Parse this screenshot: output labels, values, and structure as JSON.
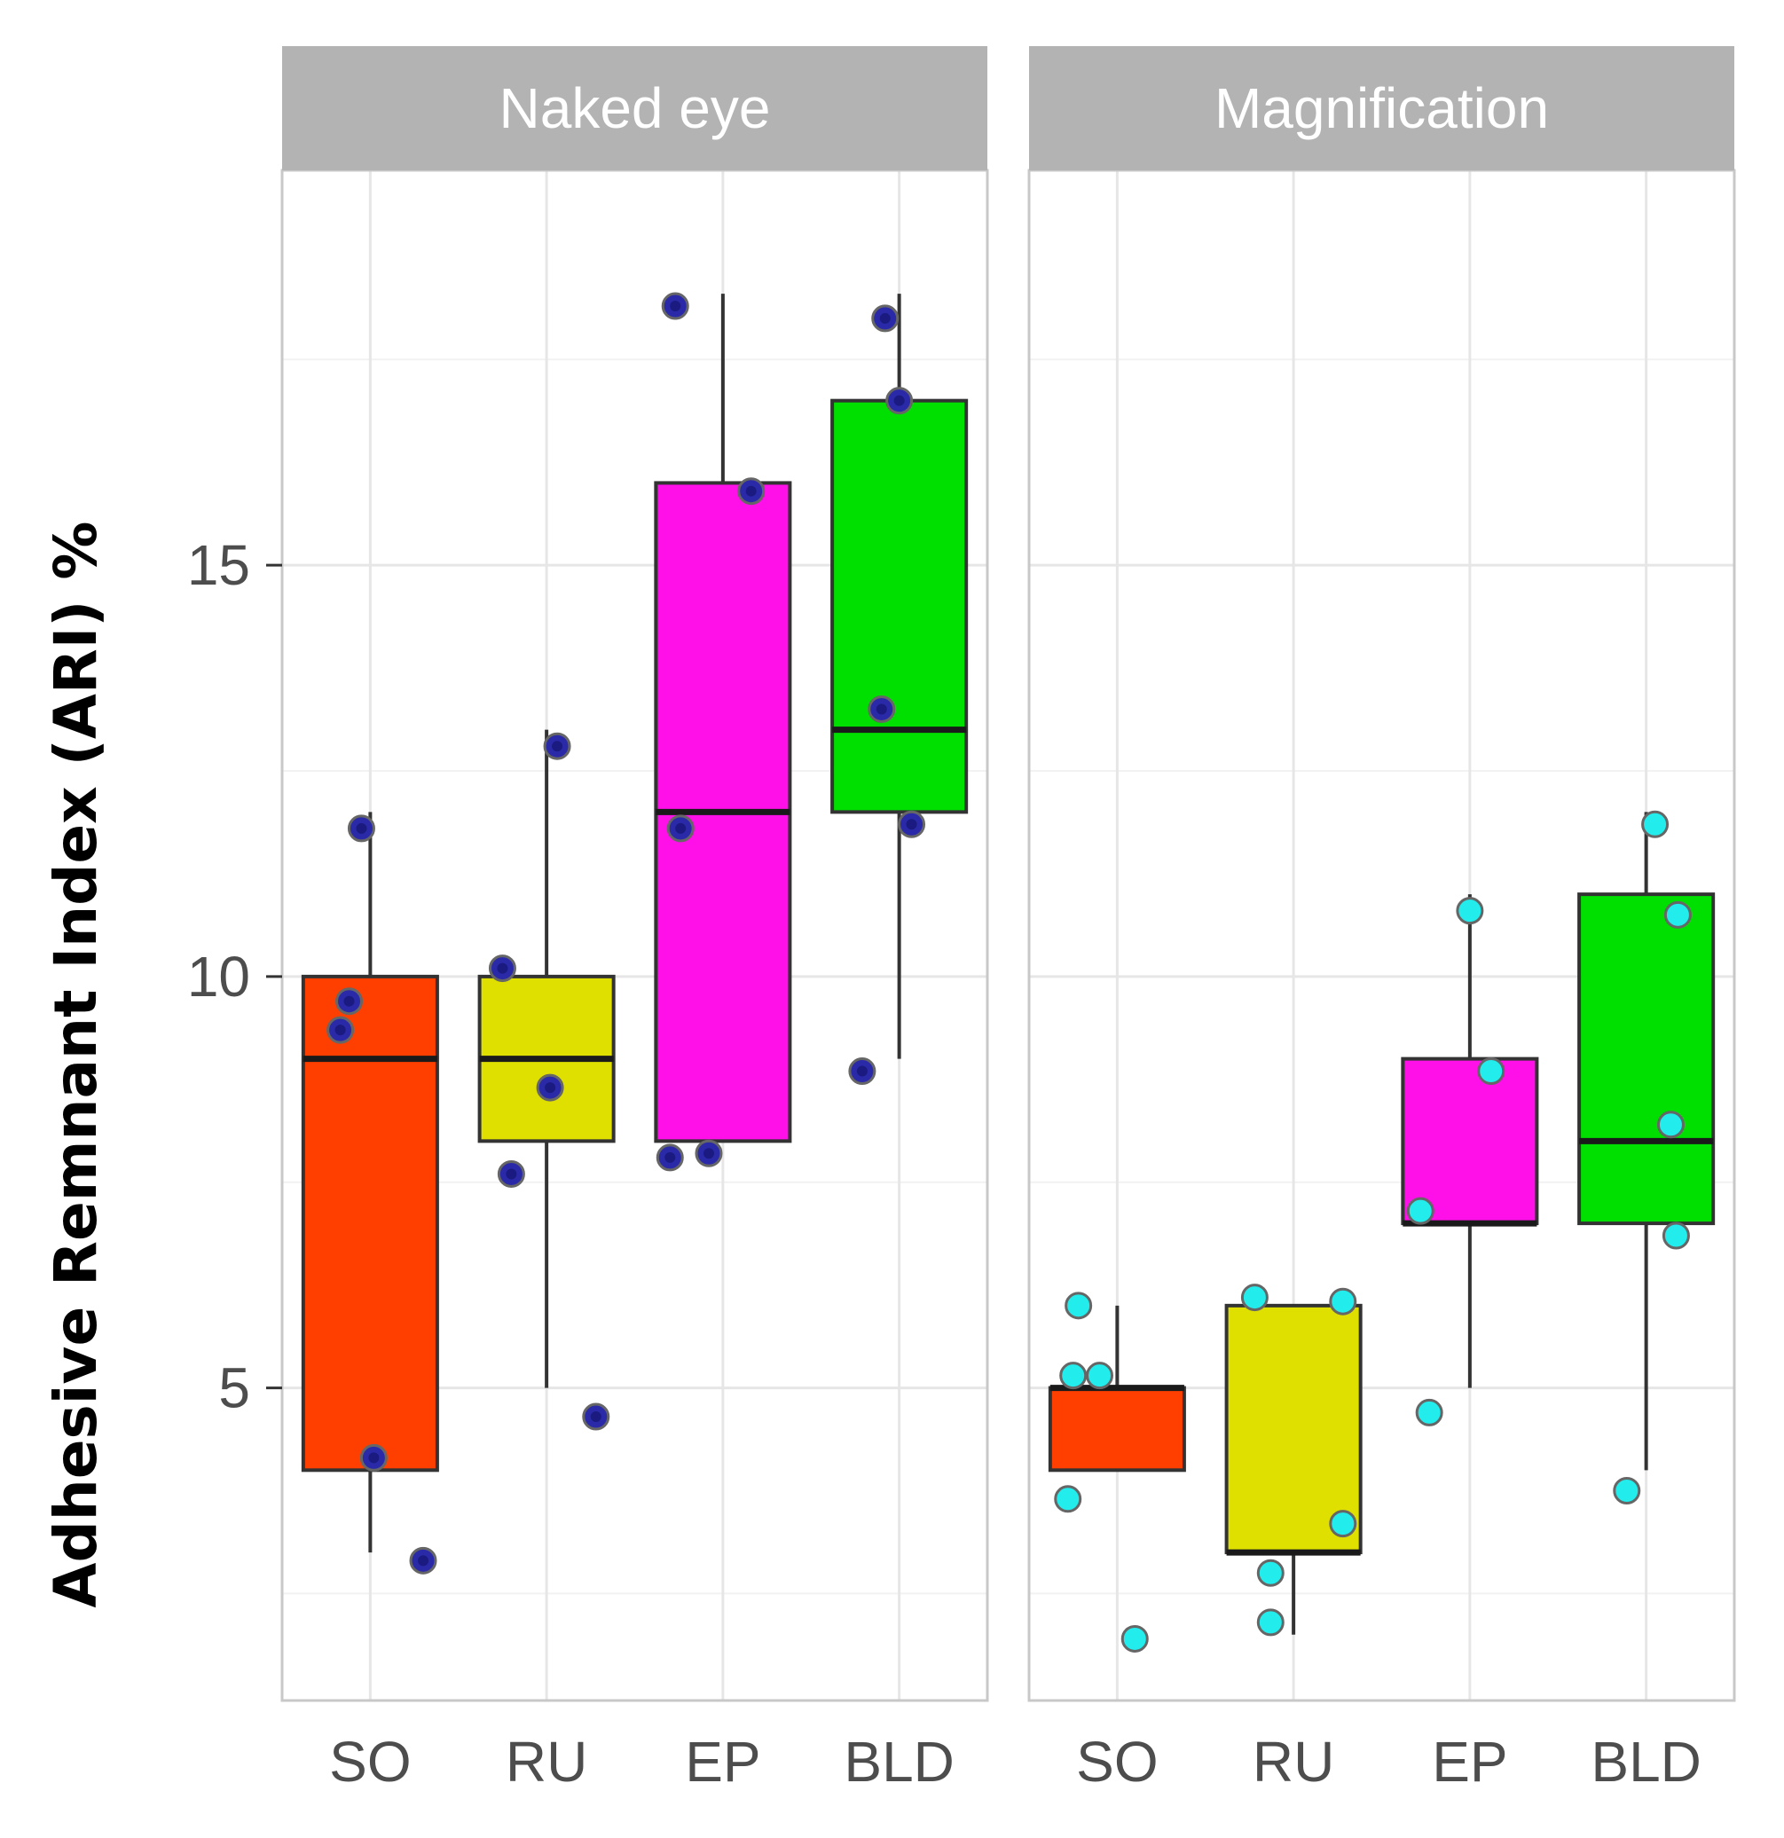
{
  "chart_data": {
    "type": "boxplot",
    "ylabel": "Adhesive Remnant Index (ARI) %",
    "ylim": [
      1.2,
      19.8
    ],
    "y_ticks": [
      5,
      10,
      15
    ],
    "categories": [
      "SO",
      "RU",
      "EP",
      "BLD"
    ],
    "category_colors": [
      "#ff3f00",
      "#e0e000",
      "#ff10e8",
      "#00e000"
    ],
    "grid": true,
    "facets": [
      {
        "title": "Naked eye",
        "point_color": "#2a2aa8",
        "boxes": [
          {
            "category": "SO",
            "q1": 4,
            "median": 9,
            "q3": 10,
            "whisker_low": 3,
            "whisker_high": 12
          },
          {
            "category": "RU",
            "q1": 8,
            "median": 9,
            "q3": 10,
            "whisker_low": 5,
            "whisker_high": 13
          },
          {
            "category": "EP",
            "q1": 8,
            "median": 12,
            "q3": 16,
            "whisker_low": 8,
            "whisker_high": 18.3
          },
          {
            "category": "BLD",
            "q1": 12,
            "median": 13,
            "q3": 17,
            "whisker_low": 9,
            "whisker_high": 18.3
          }
        ],
        "points": [
          {
            "category": "SO",
            "jitter": -0.05,
            "y": 11.8
          },
          {
            "category": "SO",
            "jitter": -0.12,
            "y": 9.7
          },
          {
            "category": "SO",
            "jitter": -0.17,
            "y": 9.35
          },
          {
            "category": "SO",
            "jitter": 0.02,
            "y": 4.15
          },
          {
            "category": "SO",
            "jitter": 0.3,
            "y": 2.9
          },
          {
            "category": "RU",
            "jitter": 0.06,
            "y": 12.8
          },
          {
            "category": "RU",
            "jitter": -0.25,
            "y": 10.1
          },
          {
            "category": "RU",
            "jitter": 0.02,
            "y": 8.65
          },
          {
            "category": "RU",
            "jitter": -0.2,
            "y": 7.6
          },
          {
            "category": "RU",
            "jitter": 0.28,
            "y": 4.65
          },
          {
            "category": "EP",
            "jitter": -0.27,
            "y": 18.15
          },
          {
            "category": "EP",
            "jitter": 0.16,
            "y": 15.9
          },
          {
            "category": "EP",
            "jitter": -0.24,
            "y": 11.8
          },
          {
            "category": "EP",
            "jitter": -0.3,
            "y": 7.8
          },
          {
            "category": "EP",
            "jitter": -0.08,
            "y": 7.85
          },
          {
            "category": "BLD",
            "jitter": -0.08,
            "y": 18.0
          },
          {
            "category": "BLD",
            "jitter": 0.0,
            "y": 17.0
          },
          {
            "category": "BLD",
            "jitter": -0.1,
            "y": 13.25
          },
          {
            "category": "BLD",
            "jitter": 0.07,
            "y": 11.85
          },
          {
            "category": "BLD",
            "jitter": -0.21,
            "y": 8.85
          }
        ]
      },
      {
        "title": "Magnification",
        "point_color": "#22ecec",
        "boxes": [
          {
            "category": "SO",
            "q1": 4,
            "median": 5,
            "q3": 5,
            "whisker_low": 4,
            "whisker_high": 6
          },
          {
            "category": "RU",
            "q1": 3,
            "median": 3,
            "q3": 6,
            "whisker_low": 2,
            "whisker_high": 6
          },
          {
            "category": "EP",
            "q1": 7,
            "median": 7,
            "q3": 9,
            "whisker_low": 5,
            "whisker_high": 11
          },
          {
            "category": "BLD",
            "q1": 7,
            "median": 8,
            "q3": 11,
            "whisker_low": 4,
            "whisker_high": 12
          }
        ],
        "points": [
          {
            "category": "SO",
            "jitter": -0.22,
            "y": 6.0
          },
          {
            "category": "SO",
            "jitter": -0.25,
            "y": 5.15
          },
          {
            "category": "SO",
            "jitter": -0.1,
            "y": 5.15
          },
          {
            "category": "SO",
            "jitter": -0.28,
            "y": 3.65
          },
          {
            "category": "SO",
            "jitter": 0.1,
            "y": 1.95
          },
          {
            "category": "RU",
            "jitter": -0.22,
            "y": 6.1
          },
          {
            "category": "RU",
            "jitter": 0.28,
            "y": 6.05
          },
          {
            "category": "RU",
            "jitter": 0.28,
            "y": 3.35
          },
          {
            "category": "RU",
            "jitter": -0.13,
            "y": 2.75
          },
          {
            "category": "RU",
            "jitter": -0.13,
            "y": 2.15
          },
          {
            "category": "EP",
            "jitter": 0.0,
            "y": 10.8
          },
          {
            "category": "EP",
            "jitter": 0.12,
            "y": 8.85
          },
          {
            "category": "EP",
            "jitter": -0.28,
            "y": 7.15
          },
          {
            "category": "EP",
            "jitter": -0.23,
            "y": 4.7
          },
          {
            "category": "BLD",
            "jitter": 0.05,
            "y": 11.85
          },
          {
            "category": "BLD",
            "jitter": 0.18,
            "y": 10.75
          },
          {
            "category": "BLD",
            "jitter": 0.14,
            "y": 8.2
          },
          {
            "category": "BLD",
            "jitter": 0.17,
            "y": 6.85
          },
          {
            "category": "BLD",
            "jitter": -0.11,
            "y": 3.75
          }
        ]
      }
    ]
  }
}
